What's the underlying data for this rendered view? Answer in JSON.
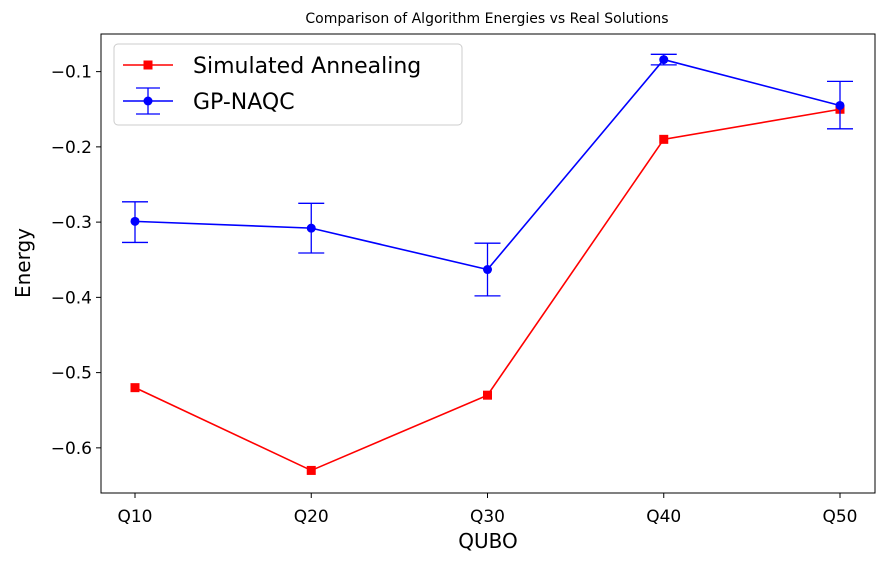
{
  "chart_data": {
    "type": "line",
    "title": "Comparison of Algorithm Energies vs Real Solutions",
    "xlabel": "QUBO",
    "ylabel": "Energy",
    "categories": [
      "Q10",
      "Q20",
      "Q30",
      "Q40",
      "Q50"
    ],
    "ylim": [
      -0.66,
      -0.05
    ],
    "yticks": [
      -0.1,
      -0.2,
      -0.3,
      -0.4,
      -0.5,
      -0.6
    ],
    "ytick_labels": [
      "−0.1",
      "−0.2",
      "−0.3",
      "−0.4",
      "−0.5",
      "−0.6"
    ],
    "legend_position": "top-left",
    "series": [
      {
        "name": "Simulated Annealing",
        "color": "#ff0000",
        "marker": "square",
        "values": [
          -0.52,
          -0.63,
          -0.53,
          -0.19,
          -0.15
        ]
      },
      {
        "name": "GP-NAQC",
        "color": "#0000ff",
        "marker": "circle",
        "values": [
          -0.299,
          -0.308,
          -0.363,
          -0.084,
          -0.145
        ],
        "error_low": [
          -0.327,
          -0.341,
          -0.398,
          -0.091,
          -0.176
        ],
        "error_high": [
          -0.273,
          -0.275,
          -0.328,
          -0.077,
          -0.113
        ]
      }
    ]
  }
}
